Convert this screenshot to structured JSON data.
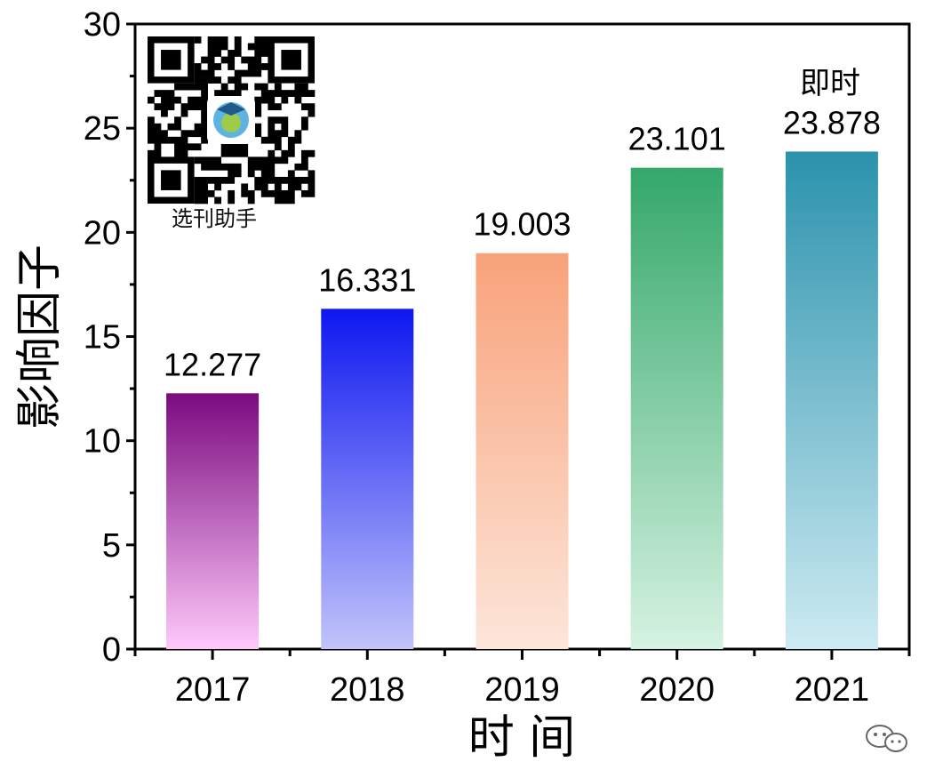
{
  "chart_data": {
    "type": "bar",
    "categories": [
      "2017",
      "2018",
      "2019",
      "2020",
      "2021"
    ],
    "values": [
      12.277,
      16.331,
      19.003,
      23.101,
      23.878
    ],
    "value_labels": [
      "12.277",
      "16.331",
      "19.003",
      "23.101",
      "23.878"
    ],
    "xlabel": "时 间",
    "ylabel": "影响因子",
    "ylim": [
      0,
      30
    ],
    "yticks": [
      0,
      5,
      10,
      15,
      20,
      25,
      30
    ],
    "grid": false,
    "annotations": [
      "即时"
    ],
    "bar_colors": [
      {
        "top": "#7b0a80",
        "bottom": "#ffc9fb"
      },
      {
        "top": "#0d17f0",
        "bottom": "#c2c4fb"
      },
      {
        "top": "#f8a27a",
        "bottom": "#fde6da"
      },
      {
        "top": "#34a86a",
        "bottom": "#d6f2e2"
      },
      {
        "top": "#2b92ad",
        "bottom": "#cdebf2"
      }
    ]
  },
  "watermark": {
    "caption": "选刊助手",
    "qr_icon": "qr-code-icon",
    "corner_icon": "wechat-icon"
  }
}
